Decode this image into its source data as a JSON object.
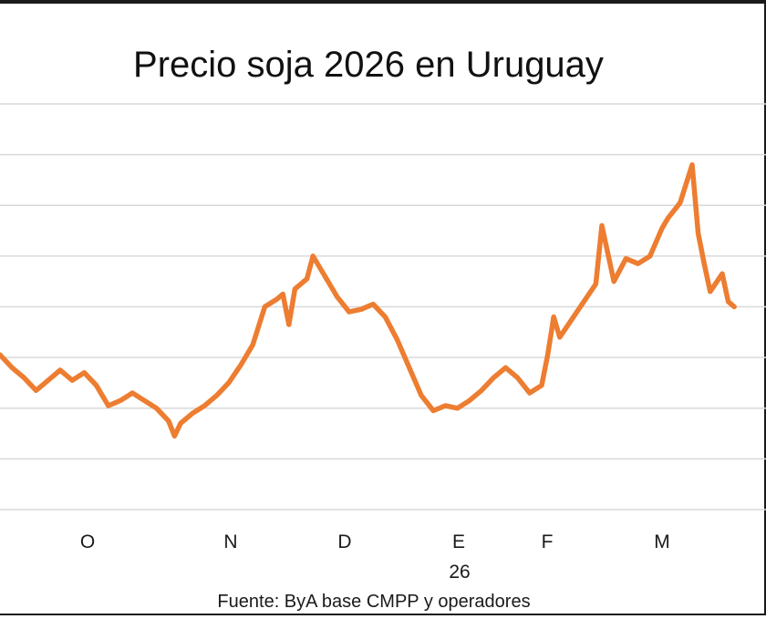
{
  "chart_data": {
    "type": "line",
    "title": "Precio soja 2026 en Uruguay",
    "xlabel": "",
    "ylabel": "",
    "categories": [
      "O",
      "N",
      "D",
      "E",
      "F",
      "M"
    ],
    "year_label": "26",
    "source": "Fuente: ByA  base  CMPP y operadores",
    "grid": true,
    "y_tick_labels_visible": false,
    "ylim": [
      0,
      8
    ],
    "series": [
      {
        "color": "#ED7D31",
        "points": [
          [
            0,
            3.05
          ],
          [
            2,
            2.8
          ],
          [
            4,
            2.6
          ],
          [
            6,
            2.35
          ],
          [
            8,
            2.55
          ],
          [
            10,
            2.75
          ],
          [
            12,
            2.55
          ],
          [
            14,
            2.7
          ],
          [
            16,
            2.45
          ],
          [
            18,
            2.05
          ],
          [
            20,
            2.15
          ],
          [
            22,
            2.3
          ],
          [
            24,
            2.15
          ],
          [
            26,
            2.0
          ],
          [
            28,
            1.75
          ],
          [
            29,
            1.45
          ],
          [
            30,
            1.7
          ],
          [
            32,
            1.9
          ],
          [
            34,
            2.05
          ],
          [
            36,
            2.25
          ],
          [
            38,
            2.5
          ],
          [
            40,
            2.85
          ],
          [
            42,
            3.25
          ],
          [
            44,
            4.0
          ],
          [
            46,
            4.15
          ],
          [
            47,
            4.25
          ],
          [
            48,
            3.65
          ],
          [
            49,
            4.35
          ],
          [
            51,
            4.55
          ],
          [
            52,
            5.0
          ],
          [
            54,
            4.6
          ],
          [
            56,
            4.2
          ],
          [
            58,
            3.9
          ],
          [
            60,
            3.95
          ],
          [
            62,
            4.05
          ],
          [
            64,
            3.8
          ],
          [
            66,
            3.35
          ],
          [
            68,
            2.8
          ],
          [
            70,
            2.25
          ],
          [
            72,
            1.95
          ],
          [
            74,
            2.05
          ],
          [
            76,
            2.0
          ],
          [
            78,
            2.15
          ],
          [
            80,
            2.35
          ],
          [
            82,
            2.6
          ],
          [
            84,
            2.8
          ],
          [
            86,
            2.6
          ],
          [
            88,
            2.3
          ],
          [
            90,
            2.45
          ],
          [
            91,
            3.05
          ],
          [
            92,
            3.8
          ],
          [
            93,
            3.4
          ],
          [
            95,
            3.75
          ],
          [
            97,
            4.1
          ],
          [
            99,
            4.45
          ],
          [
            100,
            5.6
          ],
          [
            102,
            4.5
          ],
          [
            104,
            4.95
          ],
          [
            106,
            4.85
          ],
          [
            108,
            5.0
          ],
          [
            110,
            5.55
          ],
          [
            111,
            5.75
          ],
          [
            113,
            6.05
          ],
          [
            115,
            6.8
          ],
          [
            116,
            5.45
          ],
          [
            117,
            4.85
          ],
          [
            118,
            4.3
          ],
          [
            120,
            4.65
          ],
          [
            121,
            4.1
          ],
          [
            122,
            4.0
          ]
        ]
      }
    ]
  }
}
